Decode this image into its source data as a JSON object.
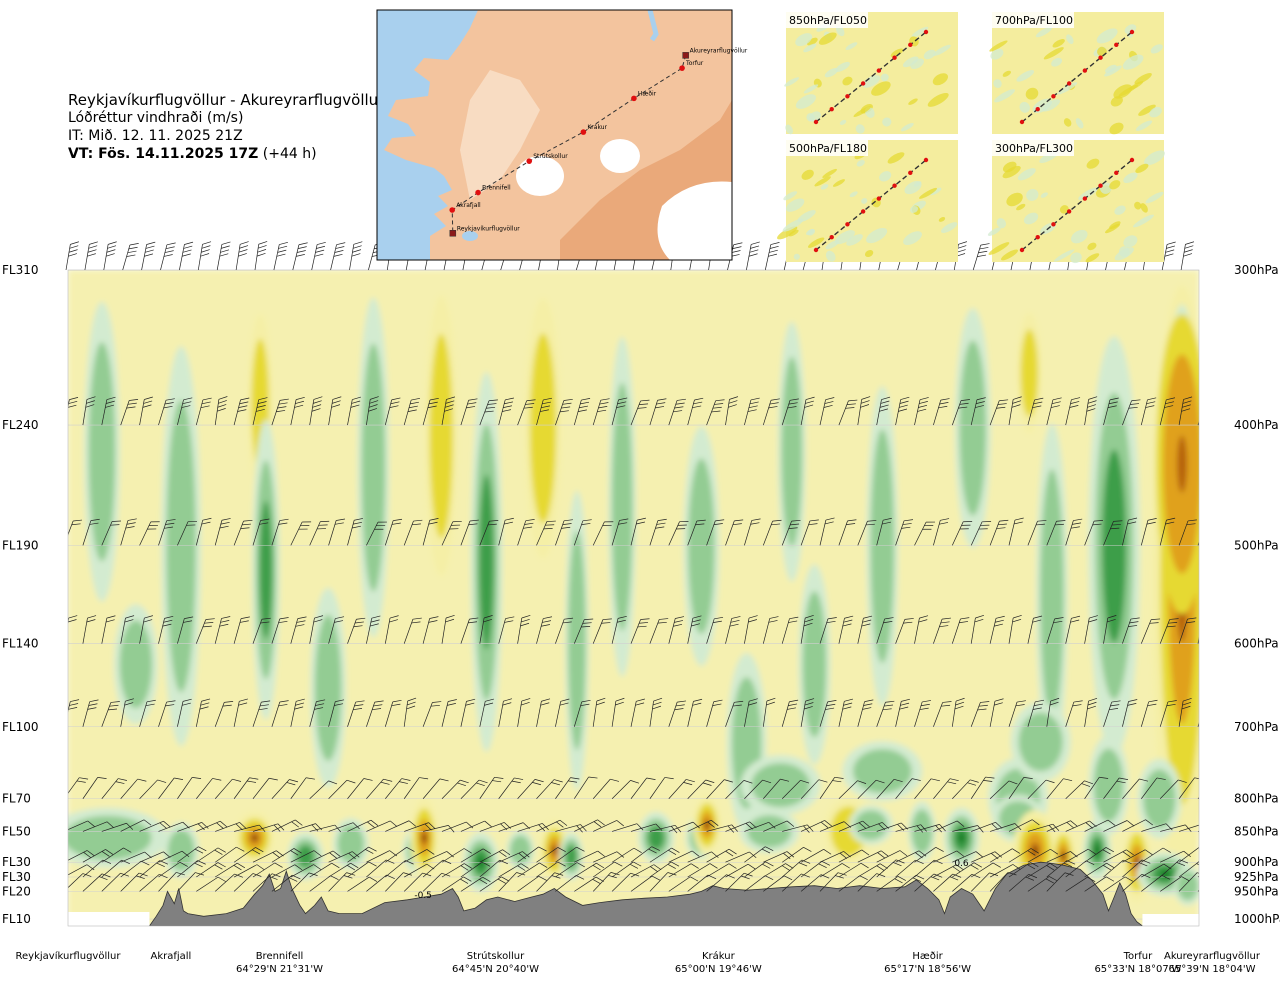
{
  "header": {
    "route": "Reykjavíkurflugvöllur - Akureyrarflugvöllur",
    "variable": "Lóðréttur vindhraði (m/s)",
    "init_prefix": "IT: Mið. 12. 11. 2025 21Z",
    "valid_bold": "VT: Fös. 14.11.2025 17Z",
    "valid_lead": " (+44 h)"
  },
  "colors": {
    "up_weak": "#f5efa6",
    "up_mid": "#e6d933",
    "up_strong": "#e0a11a",
    "up_stronger": "#b5600f",
    "up_max": "#7a2a06",
    "down_weak": "#d3ebd0",
    "down_mid": "#93cc93",
    "down_strong": "#3e9e4a",
    "down_max": "#0f7a1e",
    "neutral": "#fbfbea",
    "terrain": "#808080",
    "map_land": "#f3c49e",
    "map_sea": "#a9d0ee"
  },
  "map": {
    "points": [
      {
        "name": "Akureyrarflugvöllur",
        "lat": 65.66,
        "lon": -18.07
      },
      {
        "name": "Torfur",
        "lat": 65.55,
        "lon": -18.13
      },
      {
        "name": "Hæðir",
        "lat": 65.29,
        "lon": -18.93
      },
      {
        "name": "Krákur",
        "lat": 65.0,
        "lon": -19.77
      },
      {
        "name": "Strútskollur",
        "lat": 64.75,
        "lon": -20.67
      },
      {
        "name": "Brennifell",
        "lat": 64.48,
        "lon": -21.52
      },
      {
        "name": "Akrafjall",
        "lat": 64.33,
        "lon": -21.95
      },
      {
        "name": "Reykjavíkurflugvöllur",
        "lat": 64.13,
        "lon": -21.94
      }
    ]
  },
  "panels": [
    {
      "title": "850hPa/FL050"
    },
    {
      "title": "700hPa/FL100"
    },
    {
      "title": "500hPa/FL180"
    },
    {
      "title": "300hPa/FL300"
    }
  ],
  "chart_data": {
    "type": "heatmap",
    "title": "Lóðréttur vindhraði (m/s)",
    "left_axis": [
      "FL310",
      "FL240",
      "FL190",
      "FL140",
      "FL100",
      "FL70",
      "FL50",
      "FL30",
      "FL30",
      "FL20",
      "FL10"
    ],
    "right_axis": [
      "300hPa",
      "400hPa",
      "500hPa",
      "600hPa",
      "700hPa",
      "800hPa",
      "850hPa",
      "900hPa",
      "925hPa",
      "950hPa",
      "1000hPa"
    ],
    "pressure_levels_hpa": [
      300,
      400,
      500,
      600,
      700,
      800,
      850,
      900,
      925,
      950,
      1000
    ],
    "annotations": [
      {
        "text": "-0.5",
        "location": "Strútskollur-west",
        "pressure_hpa": 955
      },
      {
        "text": "0.6",
        "location": "Hæðir-east",
        "pressure_hpa": 900
      }
    ],
    "x_locations": [
      {
        "name": "Reykjavíkurflugvöllur",
        "coord": "",
        "frac": 0.0
      },
      {
        "name": "Akrafjall",
        "coord": "",
        "frac": 0.091
      },
      {
        "name": "Brennifell",
        "coord": "64°29'N 21°31'W",
        "frac": 0.187
      },
      {
        "name": "Strútskollur",
        "coord": "64°45'N 20°40'W",
        "frac": 0.378
      },
      {
        "name": "Krákur",
        "coord": "65°00'N 19°46'W",
        "frac": 0.575
      },
      {
        "name": "Hæðir",
        "coord": "65°17'N 18°56'W",
        "frac": 0.76
      },
      {
        "name": "Torfur",
        "coord": "65°33'N 18°07'W",
        "frac": 0.946
      },
      {
        "name": "Akureyrarflugvöllur",
        "coord": "65°39'N 18°04'W",
        "frac": 1.0
      }
    ]
  }
}
